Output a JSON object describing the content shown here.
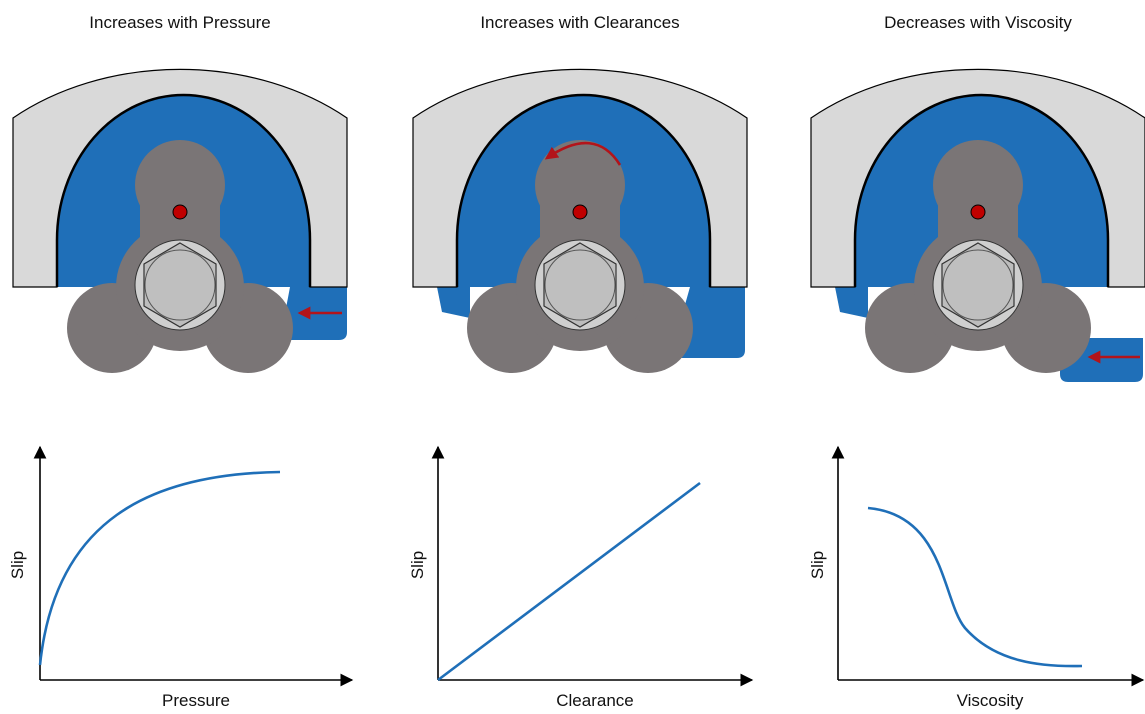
{
  "panels": [
    {
      "title": "Increases with Pressure",
      "x_label": "Pressure",
      "y_label": "Slip"
    },
    {
      "title": "Increases with Clearances",
      "x_label": "Clearance",
      "y_label": "Slip"
    },
    {
      "title": "Decreases with Viscosity",
      "x_label": "Viscosity",
      "y_label": "Slip"
    }
  ]
}
